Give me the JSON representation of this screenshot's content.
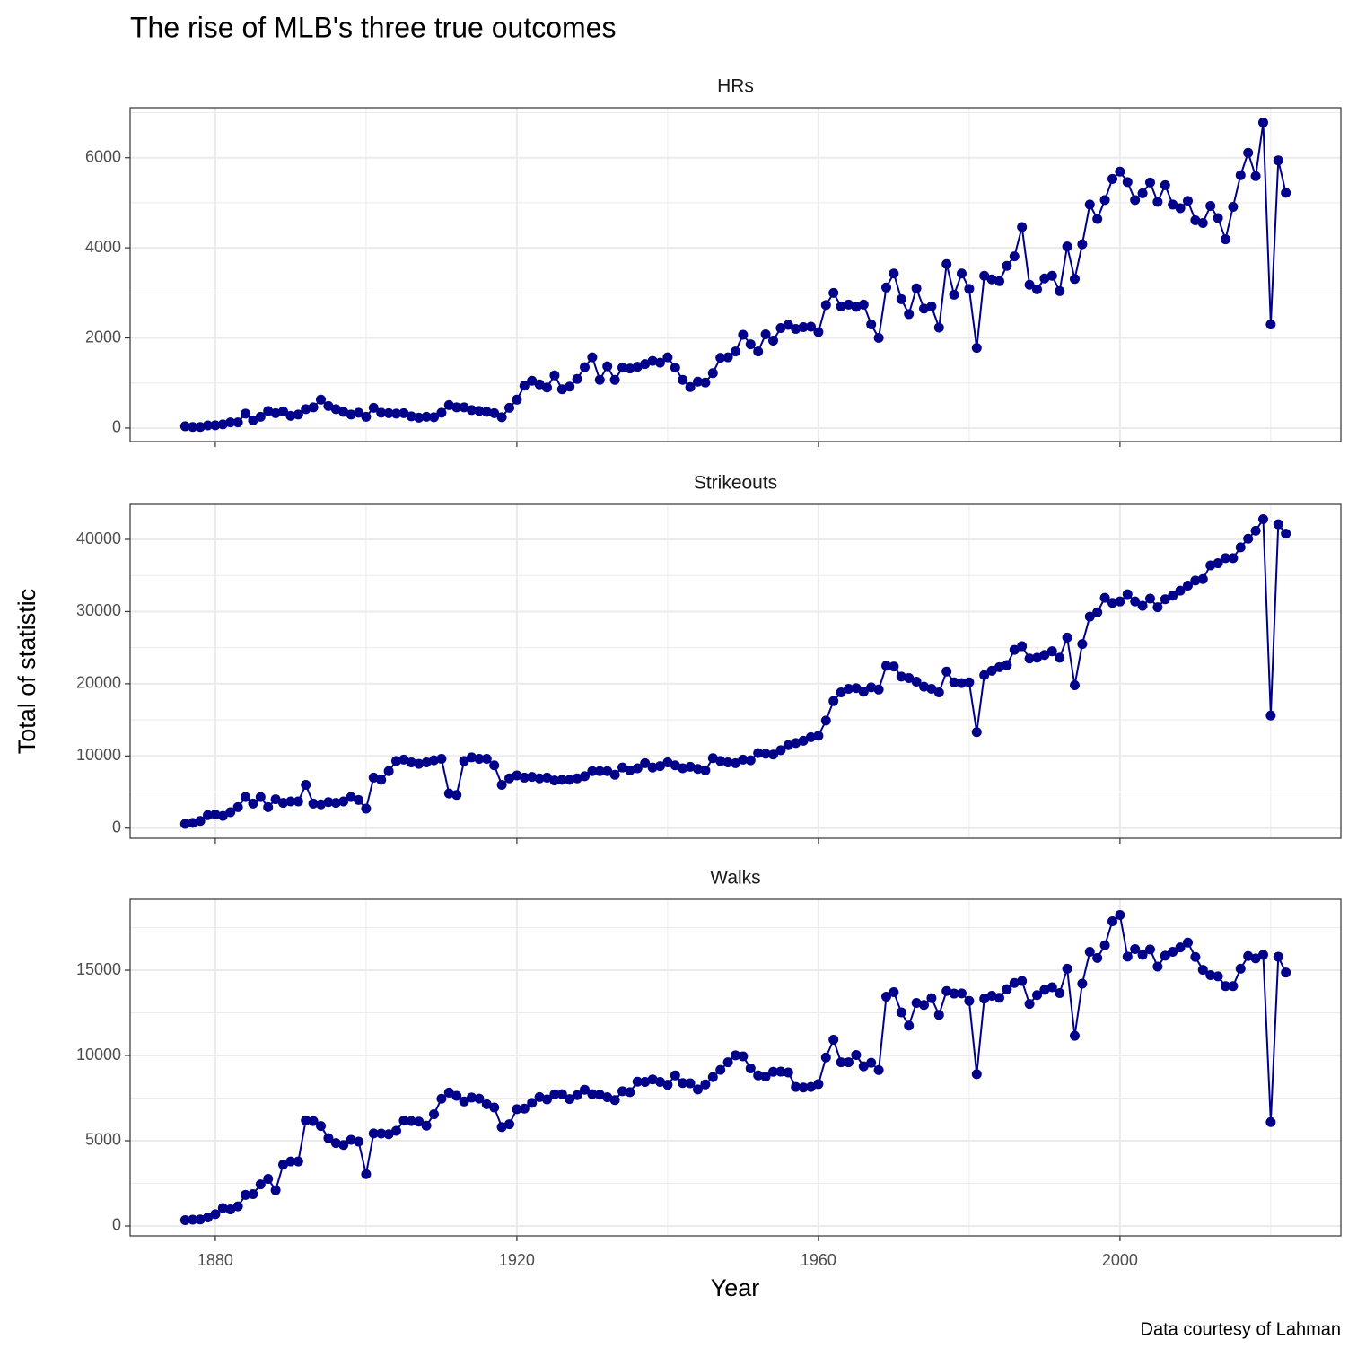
{
  "title": "The rise of MLB's three true outcomes",
  "x_label": "Year",
  "y_label": "Total of statistic",
  "caption": "Data courtesy of Lahman",
  "chart_data": [
    {
      "type": "line",
      "title": "HRs",
      "color": "#00008b",
      "grid": true,
      "xlim": [
        1868.7,
        2029.3
      ],
      "xticks": [
        1880,
        1920,
        1960,
        2000
      ],
      "ylim": [
        -300,
        7110
      ],
      "yticks": [
        0,
        2000,
        4000,
        6000
      ],
      "x": [
        1876,
        1877,
        1878,
        1879,
        1880,
        1881,
        1882,
        1883,
        1884,
        1885,
        1886,
        1887,
        1888,
        1889,
        1890,
        1891,
        1892,
        1893,
        1894,
        1895,
        1896,
        1897,
        1898,
        1899,
        1900,
        1901,
        1902,
        1903,
        1904,
        1905,
        1906,
        1907,
        1908,
        1909,
        1910,
        1911,
        1912,
        1913,
        1914,
        1915,
        1916,
        1917,
        1918,
        1919,
        1920,
        1921,
        1922,
        1923,
        1924,
        1925,
        1926,
        1927,
        1928,
        1929,
        1930,
        1931,
        1932,
        1933,
        1934,
        1935,
        1936,
        1937,
        1938,
        1939,
        1940,
        1941,
        1942,
        1943,
        1944,
        1945,
        1946,
        1947,
        1948,
        1949,
        1950,
        1951,
        1952,
        1953,
        1954,
        1955,
        1956,
        1957,
        1958,
        1959,
        1960,
        1961,
        1962,
        1963,
        1964,
        1965,
        1966,
        1967,
        1968,
        1969,
        1970,
        1971,
        1972,
        1973,
        1974,
        1975,
        1976,
        1977,
        1978,
        1979,
        1980,
        1981,
        1982,
        1983,
        1984,
        1985,
        1986,
        1987,
        1988,
        1989,
        1990,
        1991,
        1992,
        1993,
        1994,
        1995,
        1996,
        1997,
        1998,
        1999,
        2000,
        2001,
        2002,
        2003,
        2004,
        2005,
        2006,
        2007,
        2008,
        2009,
        2010,
        2011,
        2012,
        2013,
        2014,
        2015,
        2016,
        2017,
        2018,
        2019,
        2020,
        2021,
        2022
      ],
      "values": [
        40,
        24,
        23,
        58,
        62,
        80,
        126,
        125,
        320,
        170,
        250,
        380,
        330,
        370,
        270,
        300,
        420,
        460,
        630,
        490,
        420,
        360,
        300,
        340,
        250,
        450,
        340,
        330,
        320,
        330,
        260,
        230,
        250,
        240,
        340,
        510,
        460,
        460,
        400,
        380,
        360,
        330,
        240,
        450,
        630,
        940,
        1050,
        970,
        900,
        1170,
        860,
        920,
        1090,
        1350,
        1570,
        1070,
        1370,
        1070,
        1340,
        1320,
        1360,
        1420,
        1490,
        1450,
        1570,
        1340,
        1070,
        910,
        1030,
        1010,
        1220,
        1560,
        1570,
        1700,
        2070,
        1860,
        1700,
        2080,
        1940,
        2220,
        2290,
        2200,
        2240,
        2250,
        2130,
        2730,
        3000,
        2700,
        2740,
        2690,
        2740,
        2300,
        2000,
        3120,
        3430,
        2860,
        2530,
        3100,
        2650,
        2700,
        2230,
        3640,
        2960,
        3430,
        3090,
        1780,
        3380,
        3300,
        3260,
        3600,
        3810,
        4460,
        3180,
        3080,
        3320,
        3380,
        3040,
        4030,
        3310,
        4080,
        4960,
        4640,
        5060,
        5530,
        5690,
        5460,
        5060,
        5210,
        5450,
        5020,
        5390,
        4960,
        4880,
        5040,
        4610,
        4550,
        4930,
        4660,
        4190,
        4910,
        5610,
        6110,
        5590,
        6780,
        2300,
        5940,
        5220
      ]
    },
    {
      "type": "line",
      "title": "Strikeouts",
      "color": "#00008b",
      "grid": true,
      "xlim": [
        1868.7,
        2029.3
      ],
      "xticks": [
        1880,
        1920,
        1960,
        2000
      ],
      "ylim": [
        -1400,
        44850
      ],
      "yticks": [
        0,
        10000,
        20000,
        30000,
        40000
      ],
      "x": [
        1876,
        1877,
        1878,
        1879,
        1880,
        1881,
        1882,
        1883,
        1884,
        1885,
        1886,
        1887,
        1888,
        1889,
        1890,
        1891,
        1892,
        1893,
        1894,
        1895,
        1896,
        1897,
        1898,
        1899,
        1900,
        1901,
        1902,
        1903,
        1904,
        1905,
        1906,
        1907,
        1908,
        1909,
        1910,
        1911,
        1912,
        1913,
        1914,
        1915,
        1916,
        1917,
        1918,
        1919,
        1920,
        1921,
        1922,
        1923,
        1924,
        1925,
        1926,
        1927,
        1928,
        1929,
        1930,
        1931,
        1932,
        1933,
        1934,
        1935,
        1936,
        1937,
        1938,
        1939,
        1940,
        1941,
        1942,
        1943,
        1944,
        1945,
        1946,
        1947,
        1948,
        1949,
        1950,
        1951,
        1952,
        1953,
        1954,
        1955,
        1956,
        1957,
        1958,
        1959,
        1960,
        1961,
        1962,
        1963,
        1964,
        1965,
        1966,
        1967,
        1968,
        1969,
        1970,
        1971,
        1972,
        1973,
        1974,
        1975,
        1976,
        1977,
        1978,
        1979,
        1980,
        1981,
        1982,
        1983,
        1984,
        1985,
        1986,
        1987,
        1988,
        1989,
        1990,
        1991,
        1992,
        1993,
        1994,
        1995,
        1996,
        1997,
        1998,
        1999,
        2000,
        2001,
        2002,
        2003,
        2004,
        2005,
        2006,
        2007,
        2008,
        2009,
        2010,
        2011,
        2012,
        2013,
        2014,
        2015,
        2016,
        2017,
        2018,
        2019,
        2020,
        2021,
        2022
      ],
      "values": [
        590,
        730,
        1000,
        1800,
        1900,
        1700,
        2200,
        2900,
        4300,
        3400,
        4300,
        2900,
        4000,
        3500,
        3700,
        3700,
        6000,
        3400,
        3300,
        3600,
        3500,
        3700,
        4300,
        3900,
        2700,
        7000,
        6700,
        7900,
        9300,
        9500,
        9100,
        8900,
        9100,
        9400,
        9600,
        4800,
        4600,
        9300,
        9800,
        9600,
        9600,
        8700,
        6000,
        6900,
        7300,
        7000,
        7100,
        6900,
        7000,
        6600,
        6700,
        6700,
        6900,
        7200,
        7900,
        7900,
        7900,
        7400,
        8400,
        8000,
        8300,
        9000,
        8400,
        8600,
        9100,
        8700,
        8300,
        8500,
        8200,
        8000,
        9700,
        9300,
        9100,
        9000,
        9500,
        9400,
        10400,
        10300,
        10200,
        10800,
        11500,
        11800,
        12100,
        12600,
        12800,
        14900,
        17600,
        18800,
        19300,
        19400,
        18900,
        19500,
        19200,
        22500,
        22400,
        21000,
        20800,
        20300,
        19600,
        19300,
        18800,
        21700,
        20200,
        20100,
        20200,
        13300,
        21200,
        21800,
        22300,
        22600,
        24700,
        25200,
        23500,
        23600,
        24000,
        24500,
        23600,
        26400,
        19800,
        25500,
        29300,
        29900,
        31900,
        31200,
        31400,
        32400,
        31400,
        30800,
        31800,
        30600,
        31700,
        32200,
        32900,
        33600,
        34300,
        34500,
        36400,
        36700,
        37400,
        37400,
        38900,
        40100,
        41200,
        42800,
        15600,
        42100,
        40800
      ]
    },
    {
      "type": "line",
      "title": "Walks",
      "color": "#00008b",
      "grid": true,
      "xlim": [
        1868.7,
        2029.3
      ],
      "xticks": [
        1880,
        1920,
        1960,
        2000
      ],
      "ylim": [
        -580,
        19160
      ],
      "yticks": [
        0,
        5000,
        10000,
        15000
      ],
      "x": [
        1876,
        1877,
        1878,
        1879,
        1880,
        1881,
        1882,
        1883,
        1884,
        1885,
        1886,
        1887,
        1888,
        1889,
        1890,
        1891,
        1892,
        1893,
        1894,
        1895,
        1896,
        1897,
        1898,
        1899,
        1900,
        1901,
        1902,
        1903,
        1904,
        1905,
        1906,
        1907,
        1908,
        1909,
        1910,
        1911,
        1912,
        1913,
        1914,
        1915,
        1916,
        1917,
        1918,
        1919,
        1920,
        1921,
        1922,
        1923,
        1924,
        1925,
        1926,
        1927,
        1928,
        1929,
        1930,
        1931,
        1932,
        1933,
        1934,
        1935,
        1936,
        1937,
        1938,
        1939,
        1940,
        1941,
        1942,
        1943,
        1944,
        1945,
        1946,
        1947,
        1948,
        1949,
        1950,
        1951,
        1952,
        1953,
        1954,
        1955,
        1956,
        1957,
        1958,
        1959,
        1960,
        1961,
        1962,
        1963,
        1964,
        1965,
        1966,
        1967,
        1968,
        1969,
        1970,
        1971,
        1972,
        1973,
        1974,
        1975,
        1976,
        1977,
        1978,
        1979,
        1980,
        1981,
        1982,
        1983,
        1984,
        1985,
        1986,
        1987,
        1988,
        1989,
        1990,
        1991,
        1992,
        1993,
        1994,
        1995,
        1996,
        1997,
        1998,
        1999,
        2000,
        2001,
        2002,
        2003,
        2004,
        2005,
        2006,
        2007,
        2008,
        2009,
        2010,
        2011,
        2012,
        2013,
        2014,
        2015,
        2016,
        2017,
        2018,
        2019,
        2020,
        2021,
        2022
      ],
      "values": [
        340,
        370,
        380,
        500,
        690,
        1050,
        970,
        1150,
        1820,
        1870,
        2440,
        2760,
        2100,
        3600,
        3780,
        3780,
        6190,
        6150,
        5860,
        5150,
        4860,
        4750,
        5050,
        4950,
        3040,
        5430,
        5420,
        5380,
        5580,
        6180,
        6150,
        6120,
        5880,
        6550,
        7460,
        7820,
        7630,
        7300,
        7530,
        7470,
        7140,
        6950,
        5800,
        5970,
        6850,
        6880,
        7220,
        7560,
        7420,
        7720,
        7730,
        7440,
        7670,
        7990,
        7730,
        7700,
        7550,
        7380,
        7900,
        7850,
        8460,
        8450,
        8590,
        8450,
        8280,
        8830,
        8380,
        8370,
        8010,
        8300,
        8730,
        9150,
        9600,
        10010,
        9950,
        9240,
        8830,
        8760,
        9040,
        9050,
        9000,
        8150,
        8120,
        8150,
        8320,
        9880,
        10920,
        9600,
        9600,
        10030,
        9360,
        9570,
        9140,
        13450,
        13710,
        12530,
        11750,
        13080,
        12960,
        13360,
        12380,
        13780,
        13630,
        13640,
        13200,
        8900,
        13330,
        13500,
        13380,
        13890,
        14250,
        14370,
        13020,
        13540,
        13850,
        14000,
        13660,
        15090,
        11150,
        14210,
        16080,
        15720,
        16460,
        17870,
        18240,
        15800,
        16240,
        15900,
        16220,
        15210,
        15850,
        16080,
        16340,
        16620,
        15780,
        15020,
        14710,
        14640,
        14070,
        14070,
        15090,
        15830,
        15690,
        15900,
        6090,
        15790,
        14860
      ]
    }
  ]
}
